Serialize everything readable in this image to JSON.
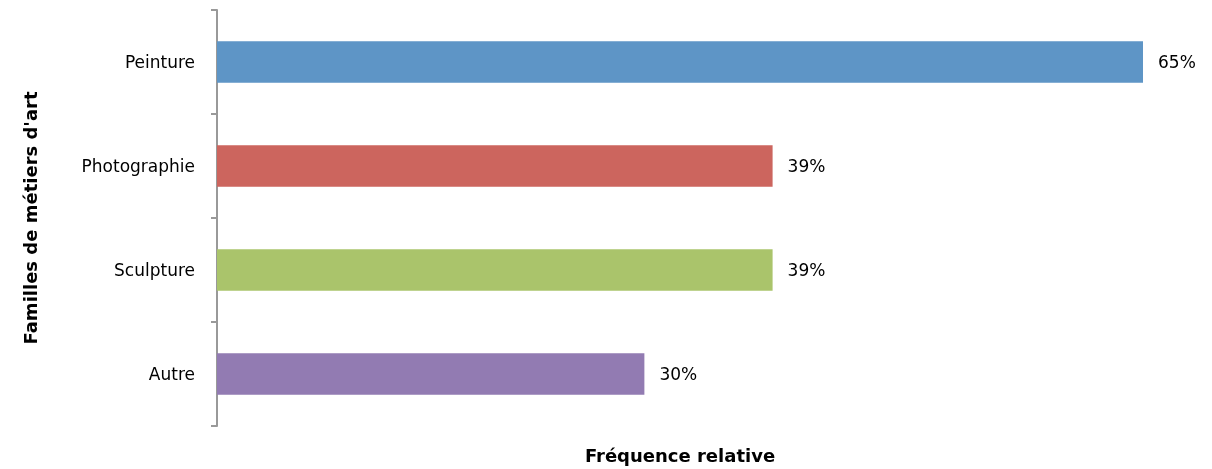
{
  "chart_data": {
    "type": "bar",
    "orientation": "horizontal",
    "xlabel": "Fréquence relative",
    "ylabel": "Familles de métiers d'art",
    "categories": [
      "Peinture",
      "Photographie",
      "Sculpture",
      "Autre"
    ],
    "values": [
      65,
      39,
      39,
      30
    ],
    "colors": [
      "#5e95c6",
      "#cc655e",
      "#aac46b",
      "#927bb2"
    ],
    "value_labels": [
      "65%",
      "39%",
      "39%",
      "30%"
    ],
    "tick_labels": "y"
  }
}
